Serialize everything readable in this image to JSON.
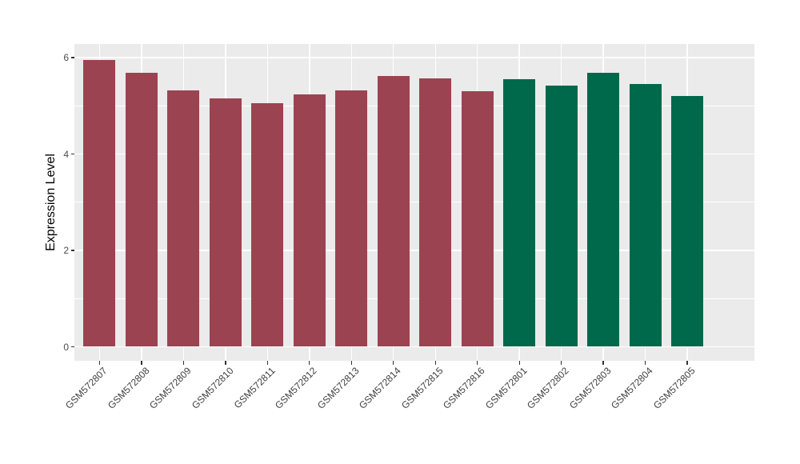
{
  "chart_data": {
    "type": "bar",
    "title": "",
    "xlabel": "",
    "ylabel": "Expression Level",
    "categories": [
      "GSM572807",
      "GSM572808",
      "GSM572809",
      "GSM572810",
      "GSM572811",
      "GSM572812",
      "GSM572813",
      "GSM572814",
      "GSM572815",
      "GSM572816",
      "GSM572801",
      "GSM572802",
      "GSM572803",
      "GSM572804",
      "GSM572805"
    ],
    "values": [
      5.95,
      5.69,
      5.32,
      5.16,
      5.05,
      5.24,
      5.32,
      5.61,
      5.57,
      5.31,
      5.55,
      5.42,
      5.68,
      5.46,
      5.2
    ],
    "bar_groups": [
      "red",
      "red",
      "red",
      "red",
      "red",
      "red",
      "red",
      "red",
      "red",
      "red",
      "green",
      "green",
      "green",
      "green",
      "green"
    ],
    "group_colors": {
      "red": "#9C4351",
      "green": "#00694B"
    },
    "ylim": [
      0,
      6.28
    ],
    "yticks": [
      0,
      2,
      4,
      6
    ],
    "ytick_labels": [
      "0",
      "2",
      "4",
      "6"
    ],
    "yticks_minor": [
      1,
      3,
      5
    ],
    "x_tick_rotation_deg": 45,
    "legend": "none",
    "grid": "white major+minor horizontal lines and vertical lines at category centers on gray panel",
    "panel_background": "#EBEBEB",
    "gridline_color": "#FFFFFF",
    "axis_text_color": "#4D4D4D",
    "tick_mark_color": "#333333"
  }
}
